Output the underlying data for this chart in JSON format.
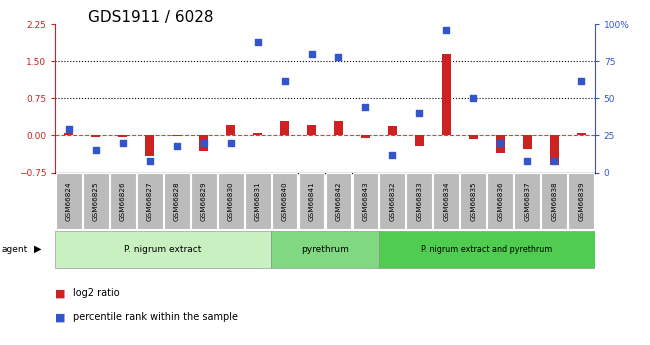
{
  "title": "GDS1911 / 6028",
  "samples": [
    "GSM66824",
    "GSM66825",
    "GSM66826",
    "GSM66827",
    "GSM66828",
    "GSM66829",
    "GSM66830",
    "GSM66831",
    "GSM66840",
    "GSM66841",
    "GSM66842",
    "GSM66843",
    "GSM66832",
    "GSM66833",
    "GSM66834",
    "GSM66835",
    "GSM66836",
    "GSM66837",
    "GSM66838",
    "GSM66839"
  ],
  "log2_ratio": [
    0.05,
    -0.03,
    -0.03,
    -0.42,
    -0.02,
    -0.32,
    0.22,
    0.05,
    0.3,
    0.22,
    0.3,
    -0.05,
    0.2,
    -0.22,
    1.65,
    -0.08,
    -0.35,
    -0.28,
    -0.6,
    0.05
  ],
  "percentile": [
    29,
    15,
    20,
    8,
    18,
    20,
    20,
    88,
    62,
    80,
    78,
    44,
    12,
    40,
    96,
    50,
    20,
    8,
    8,
    62
  ],
  "groups": [
    {
      "label": "P. nigrum extract",
      "start": 0,
      "end": 7,
      "color": "#c8f0c0"
    },
    {
      "label": "pyrethrum",
      "start": 8,
      "end": 11,
      "color": "#80d880"
    },
    {
      "label": "P. nigrum extract and pyrethrum",
      "start": 12,
      "end": 19,
      "color": "#50cc50"
    }
  ],
  "ylim_left": [
    -0.75,
    2.25
  ],
  "ylim_right": [
    0,
    100
  ],
  "yticks_left": [
    -0.75,
    0,
    0.75,
    1.5,
    2.25
  ],
  "yticks_right": [
    0,
    25,
    50,
    75,
    100
  ],
  "hlines": [
    0.75,
    1.5
  ],
  "bar_color_red": "#cc2222",
  "bar_color_blue": "#3355cc",
  "zero_line_color": "#cc4444",
  "title_fontsize": 11,
  "tick_fontsize": 6.5,
  "label_gray": "#bbbbbb",
  "bar_width": 0.32,
  "dot_size": 22
}
